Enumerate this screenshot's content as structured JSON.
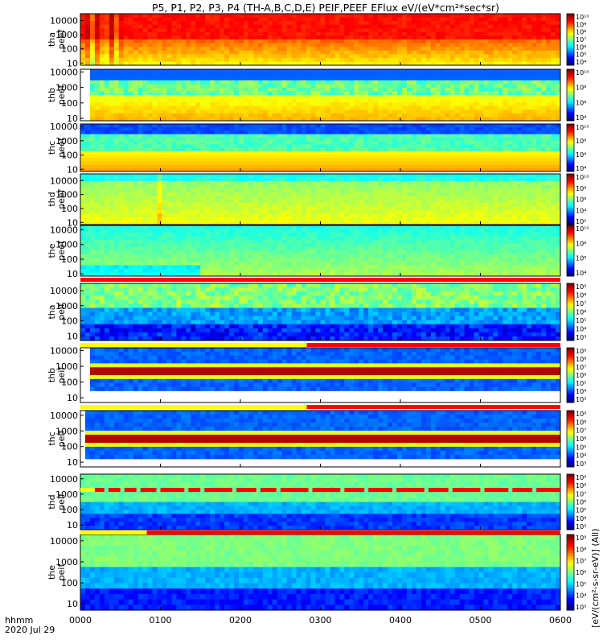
{
  "title": "P5, P1, P2, P3, P4 (TH-A,B,C,D,E) PEIF,PEEF EFlux eV/(eV*cm²*sec*sr)",
  "time_axis": {
    "label_line1": "hhmm",
    "label_line2": "2020 Jul 29",
    "ticks": [
      "0000",
      "0100",
      "0200",
      "0300",
      "0400",
      "0500",
      "0600"
    ],
    "range_hours": [
      0,
      6
    ]
  },
  "colorbar_unit_label": "[eV/(cm²-s-sr-eV)] (All)",
  "chart_data": {
    "type": "heatmap",
    "x_unit": "hours since 0000 UT",
    "y_unit": "eV",
    "y_scale": "log",
    "panels": [
      {
        "probe": "tha",
        "species": "peef",
        "label": "tha\npeef",
        "kind": "electron",
        "ylim": [
          7,
          30000
        ],
        "yticks": [
          "10",
          "100",
          "1000",
          "10000"
        ],
        "cb_ticks": [
          "10⁴",
          "10⁵",
          "10⁶",
          "10⁷",
          "10⁸",
          "10⁹",
          "10¹⁰"
        ],
        "bar": null
      },
      {
        "probe": "thb",
        "species": "peef",
        "label": "thb\npeef",
        "kind": "electron",
        "ylim": [
          7,
          15000
        ],
        "yticks": [
          "10",
          "100",
          "1000",
          "10000"
        ],
        "cb_ticks": [
          "10⁴",
          "10⁶",
          "10⁸",
          "10¹⁰"
        ],
        "bar": null
      },
      {
        "probe": "thc",
        "species": "peef",
        "label": "thc\npeef",
        "kind": "electron",
        "ylim": [
          7,
          15000
        ],
        "yticks": [
          "10",
          "100",
          "1000",
          "10000"
        ],
        "cb_ticks": [
          "10⁴",
          "10⁶",
          "10⁸",
          "10¹⁰"
        ],
        "bar": null
      },
      {
        "probe": "thd",
        "species": "peef",
        "label": "thd\npeef",
        "kind": "electron",
        "ylim": [
          7,
          30000
        ],
        "yticks": [
          "10",
          "100",
          "1000",
          "10000"
        ],
        "cb_ticks": [
          "10²",
          "10⁴",
          "10⁶",
          "10⁸",
          "10¹⁰"
        ],
        "bar": null
      },
      {
        "probe": "the",
        "species": "peef",
        "label": "the\npeef",
        "kind": "electron",
        "ylim": [
          7,
          20000
        ],
        "yticks": [
          "10",
          "100",
          "1000",
          "10000"
        ],
        "cb_ticks": [
          "10⁴",
          "10⁶",
          "10⁸",
          "10¹⁰"
        ],
        "bar": {
          "segments": [
            {
              "from": 0,
              "to": 6,
              "color": "#ff0000"
            }
          ]
        }
      },
      {
        "probe": "tha",
        "species": "peif",
        "label": "tha\npeif",
        "kind": "ion",
        "ylim": [
          5,
          30000
        ],
        "yticks": [
          "10",
          "100",
          "1000",
          "10000"
        ],
        "cb_ticks": [
          "10³",
          "10⁴",
          "10⁵",
          "10⁶",
          "10⁷",
          "10⁸",
          "10⁹"
        ],
        "bar": {
          "segments": [
            {
              "from": 0,
              "to": 2.83,
              "color": "#ffff00"
            },
            {
              "from": 2.83,
              "to": 6,
              "color": "#ff0000"
            }
          ]
        }
      },
      {
        "probe": "thb",
        "species": "peif",
        "label": "thb\npeif",
        "kind": "ion",
        "ylim": [
          5,
          15000
        ],
        "yticks": [
          "10",
          "100",
          "1000",
          "10000"
        ],
        "cb_ticks": [
          "10³",
          "10⁴",
          "10⁵",
          "10⁶",
          "10⁷",
          "10⁸",
          "10⁹"
        ],
        "bar": {
          "segments": [
            {
              "from": 0,
              "to": 2.83,
              "color": "#ffff00"
            },
            {
              "from": 2.83,
              "to": 6,
              "color": "#ff0000"
            }
          ]
        }
      },
      {
        "probe": "thc",
        "species": "peif",
        "label": "thc\npeif",
        "kind": "ion",
        "ylim": [
          5,
          20000
        ],
        "yticks": [
          "10",
          "100",
          "1000",
          "10000"
        ],
        "cb_ticks": [
          "10³",
          "10⁴",
          "10⁵",
          "10⁶",
          "10⁷",
          "10⁸",
          "10⁹"
        ],
        "bar": {
          "segments": [
            {
              "from": 0,
              "to": 0.18,
              "color": "#ffff00"
            },
            {
              "from": 0.18,
              "to": 0.3,
              "color": "#ff0000"
            },
            {
              "from": 0.35,
              "to": 0.5,
              "color": "#ff0000"
            },
            {
              "from": 0.55,
              "to": 0.7,
              "color": "#ff0000"
            },
            {
              "from": 0.75,
              "to": 0.95,
              "color": "#ff0000"
            },
            {
              "from": 1.0,
              "to": 1.3,
              "color": "#ff0000"
            },
            {
              "from": 1.35,
              "to": 1.5,
              "color": "#ff0000"
            },
            {
              "from": 1.55,
              "to": 1.9,
              "color": "#ff0000"
            },
            {
              "from": 1.95,
              "to": 2.2,
              "color": "#ff0000"
            },
            {
              "from": 2.25,
              "to": 2.45,
              "color": "#ff0000"
            },
            {
              "from": 2.5,
              "to": 2.85,
              "color": "#ff0000"
            },
            {
              "from": 2.9,
              "to": 3.25,
              "color": "#ff0000"
            },
            {
              "from": 3.3,
              "to": 3.55,
              "color": "#ff0000"
            },
            {
              "from": 3.6,
              "to": 3.9,
              "color": "#ff0000"
            },
            {
              "from": 3.95,
              "to": 4.3,
              "color": "#ff0000"
            },
            {
              "from": 4.35,
              "to": 4.6,
              "color": "#ff0000"
            },
            {
              "from": 4.65,
              "to": 5.0,
              "color": "#ff0000"
            },
            {
              "from": 5.05,
              "to": 5.35,
              "color": "#ff0000"
            },
            {
              "from": 5.4,
              "to": 5.65,
              "color": "#ff0000"
            },
            {
              "from": 5.7,
              "to": 6.0,
              "color": "#ff0000"
            }
          ]
        }
      },
      {
        "probe": "thd",
        "species": "peif",
        "label": "thd\npeif",
        "kind": "ion",
        "ylim": [
          5,
          20000
        ],
        "yticks": [
          "10",
          "100",
          "1000",
          "10000"
        ],
        "cb_ticks": [
          "10³",
          "10⁴",
          "10⁵",
          "10⁶",
          "10⁷",
          "10⁸",
          "10⁹"
        ],
        "bar": {
          "segments": [
            {
              "from": 0,
              "to": 0.83,
              "color": "#ffff00"
            },
            {
              "from": 0.83,
              "to": 6,
              "color": "#ff0000"
            }
          ]
        }
      },
      {
        "probe": "the",
        "species": "peif",
        "label": "the\npeif",
        "kind": "ion",
        "ylim": [
          5,
          20000
        ],
        "yticks": [
          "10",
          "100",
          "1000",
          "10000"
        ],
        "cb_ticks": [
          "10³",
          "10⁴",
          "10⁵",
          "10⁶",
          "10⁷",
          "10⁸",
          "10⁹"
        ],
        "bar": null
      }
    ]
  },
  "colors": {
    "background": "#ffffff",
    "frame": "#000000"
  }
}
